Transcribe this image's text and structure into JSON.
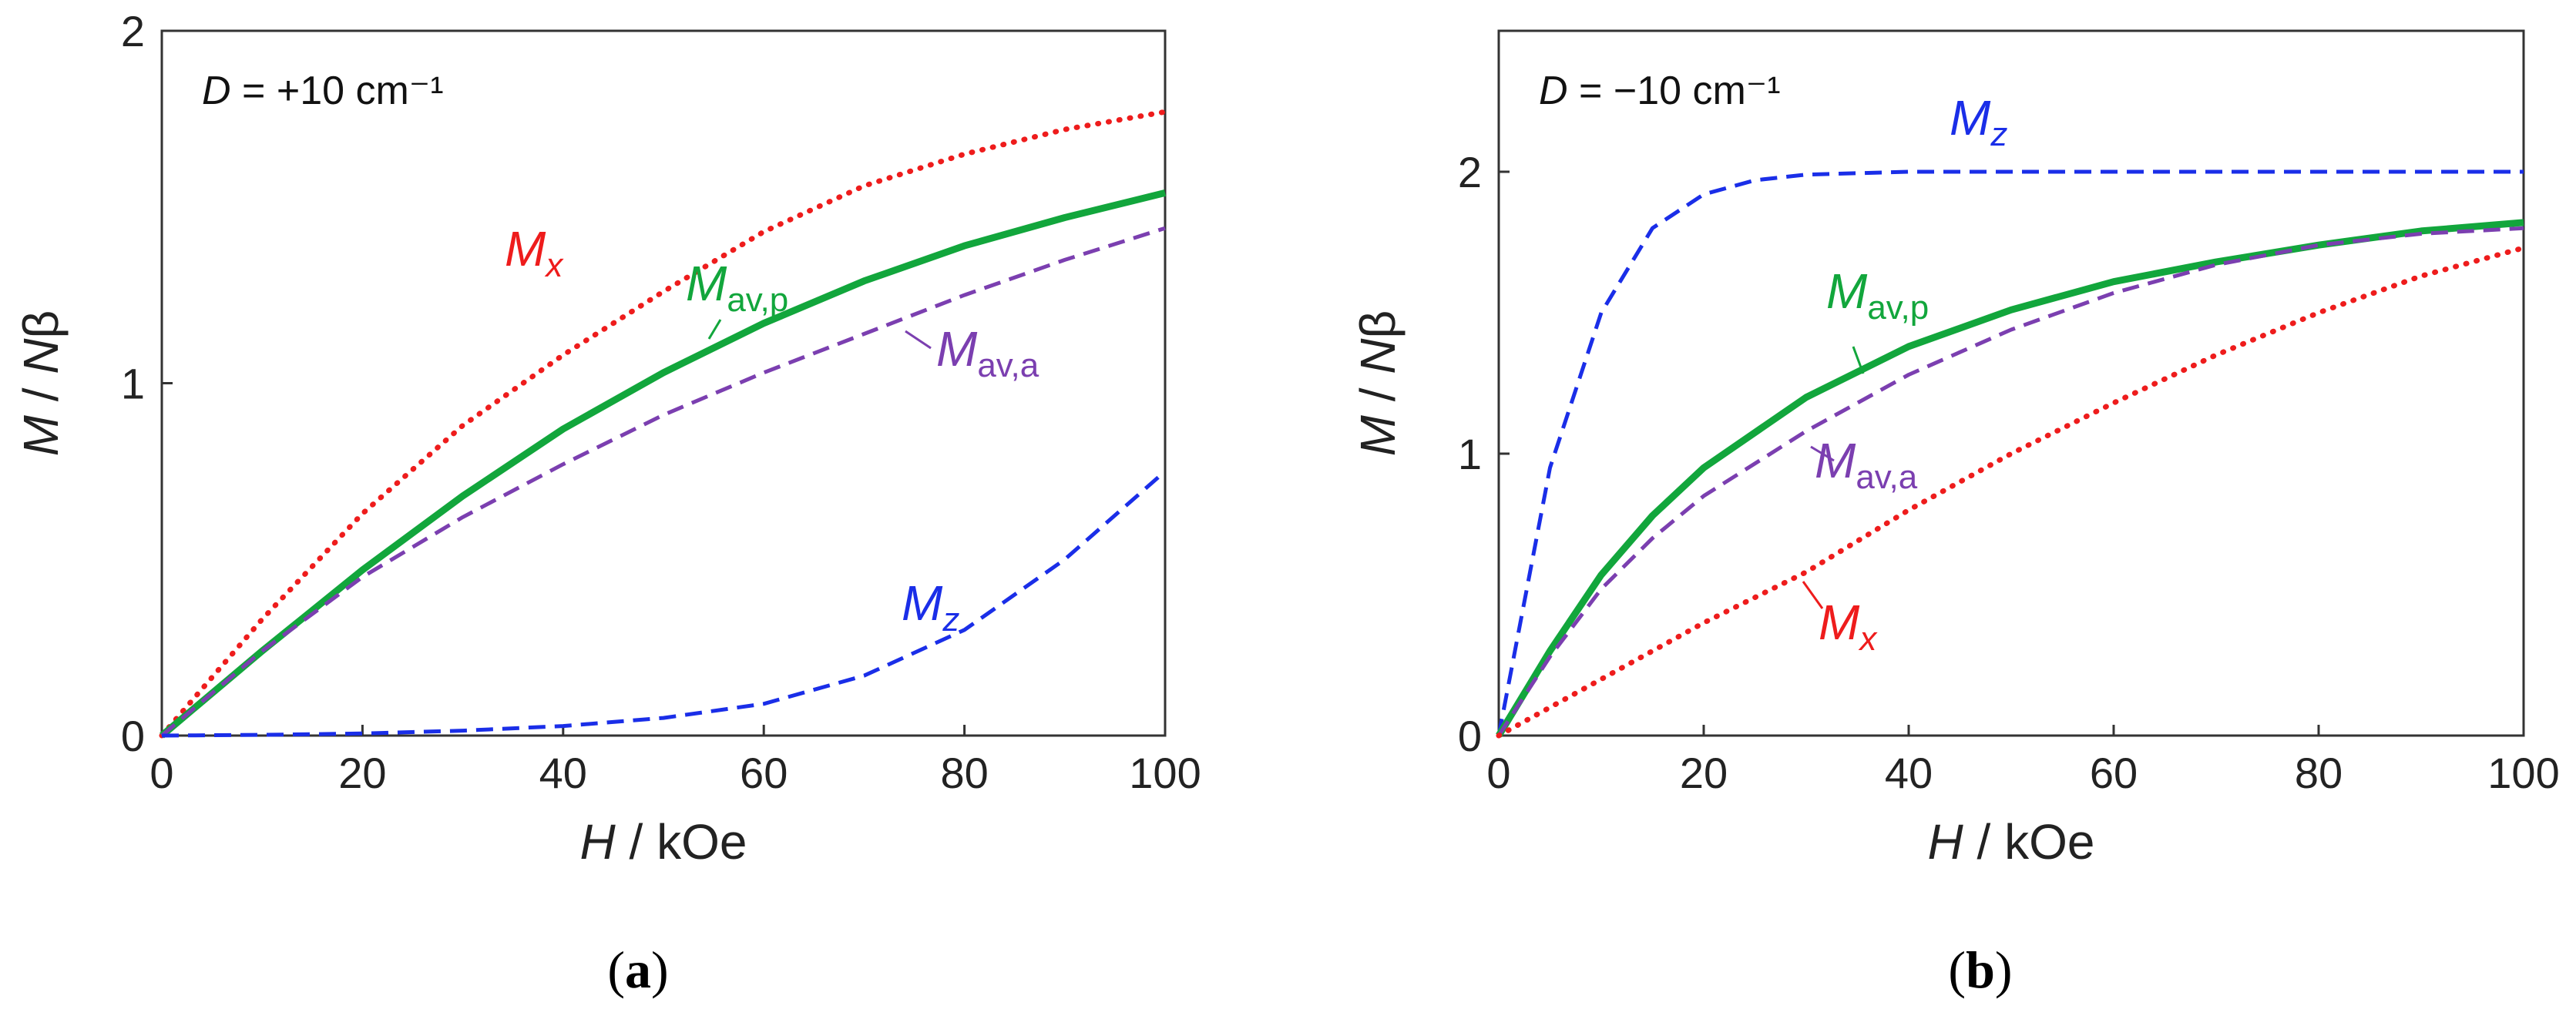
{
  "chart_data": [
    {
      "type": "line",
      "caption": "(a)",
      "annotation": {
        "symbol": "D",
        "text": " = +10 cm⁻¹"
      },
      "xlabel": {
        "symbol": "H",
        "unit": " / kOe"
      },
      "ylabel": {
        "symbol": "M",
        "sep": " / ",
        "symbol2": "N",
        "tail": "β"
      },
      "xlim": [
        0,
        100
      ],
      "ylim": [
        0,
        2
      ],
      "xticks": [
        "0",
        "20",
        "40",
        "60",
        "80",
        "100"
      ],
      "yticks": [
        "0",
        "1",
        "2"
      ],
      "grid": false,
      "series": [
        {
          "name": "M",
          "sub": "x",
          "color": "#ee1c1c",
          "style": "dotted",
          "x": [
            0,
            10,
            20,
            30,
            40,
            50,
            60,
            70,
            80,
            90,
            100
          ],
          "y": [
            0,
            0.33,
            0.63,
            0.88,
            1.08,
            1.26,
            1.43,
            1.56,
            1.65,
            1.72,
            1.77
          ]
        },
        {
          "name": "M",
          "sub": "av,p",
          "color": "#12a63c",
          "style": "solid",
          "x": [
            0,
            10,
            20,
            30,
            40,
            50,
            60,
            70,
            80,
            90,
            100
          ],
          "y": [
            0,
            0.24,
            0.47,
            0.68,
            0.87,
            1.03,
            1.17,
            1.29,
            1.39,
            1.47,
            1.54
          ]
        },
        {
          "name": "M",
          "sub": "av,a",
          "color": "#7b3fb0",
          "style": "dashed",
          "x": [
            0,
            10,
            20,
            30,
            40,
            50,
            60,
            70,
            80,
            90,
            100
          ],
          "y": [
            0,
            0.24,
            0.45,
            0.62,
            0.77,
            0.91,
            1.03,
            1.14,
            1.25,
            1.35,
            1.44
          ]
        },
        {
          "name": "M",
          "sub": "z",
          "color": "#1a2ee8",
          "style": "dashed",
          "x": [
            0,
            10,
            20,
            30,
            40,
            50,
            60,
            70,
            80,
            90,
            100
          ],
          "y": [
            0,
            0.002,
            0.006,
            0.014,
            0.027,
            0.05,
            0.09,
            0.17,
            0.3,
            0.5,
            0.75
          ]
        }
      ]
    },
    {
      "type": "line",
      "caption": "(b)",
      "annotation": {
        "symbol": "D",
        "text": " = −10 cm⁻¹"
      },
      "xlabel": {
        "symbol": "H",
        "unit": " / kOe"
      },
      "ylabel": {
        "symbol": "M",
        "sep": " / ",
        "symbol2": "N",
        "tail": "β"
      },
      "xlim": [
        0,
        100
      ],
      "ylim": [
        0,
        2.5
      ],
      "xticks": [
        "0",
        "20",
        "40",
        "60",
        "80",
        "100"
      ],
      "yticks": [
        "0",
        "1",
        "2"
      ],
      "grid": false,
      "series": [
        {
          "name": "M",
          "sub": "z",
          "color": "#1a2ee8",
          "style": "dashed",
          "x": [
            0,
            5,
            10,
            15,
            20,
            25,
            30,
            40,
            50,
            60,
            80,
            100
          ],
          "y": [
            0,
            0.95,
            1.5,
            1.8,
            1.92,
            1.97,
            1.99,
            2.0,
            2.0,
            2.0,
            2.0,
            2.0
          ]
        },
        {
          "name": "M",
          "sub": "av,p",
          "color": "#12a63c",
          "style": "solid",
          "x": [
            0,
            5,
            10,
            15,
            20,
            30,
            40,
            50,
            60,
            70,
            80,
            90,
            100
          ],
          "y": [
            0,
            0.3,
            0.57,
            0.78,
            0.95,
            1.2,
            1.38,
            1.51,
            1.61,
            1.68,
            1.74,
            1.79,
            1.82
          ]
        },
        {
          "name": "M",
          "sub": "av,a",
          "color": "#7b3fb0",
          "style": "dashed",
          "x": [
            0,
            5,
            10,
            15,
            20,
            30,
            40,
            50,
            60,
            70,
            80,
            90,
            100
          ],
          "y": [
            0,
            0.28,
            0.52,
            0.7,
            0.85,
            1.08,
            1.28,
            1.44,
            1.57,
            1.67,
            1.74,
            1.78,
            1.8
          ]
        },
        {
          "name": "M",
          "sub": "x",
          "color": "#ee1c1c",
          "style": "dotted",
          "x": [
            0,
            10,
            20,
            30,
            40,
            50,
            60,
            70,
            80,
            90,
            100
          ],
          "y": [
            0,
            0.2,
            0.4,
            0.58,
            0.8,
            1.0,
            1.18,
            1.35,
            1.5,
            1.63,
            1.73
          ]
        }
      ]
    }
  ]
}
